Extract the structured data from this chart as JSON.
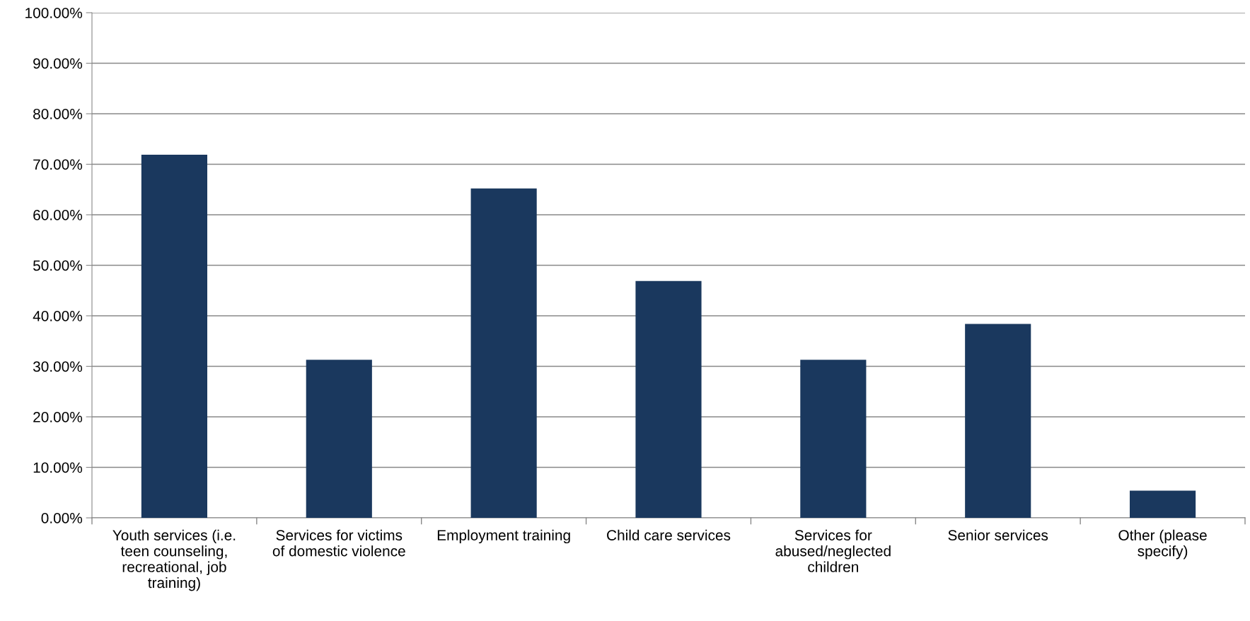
{
  "chart_data": {
    "type": "bar",
    "categories": [
      "Youth services (i.e. teen counseling, recreational, job training)",
      "Services for victims of domestic violence",
      "Employment training",
      "Child care services",
      "Services for abused/neglected children",
      "Senior services",
      "Other (please specify)"
    ],
    "values": [
      71.9,
      31.3,
      65.2,
      46.9,
      31.3,
      38.4,
      5.4
    ],
    "color": "#1a385e",
    "ylim": [
      0,
      100
    ],
    "yticks": [
      {
        "value": 0,
        "label": "0.00%"
      },
      {
        "value": 10,
        "label": "10.00%"
      },
      {
        "value": 20,
        "label": "20.00%"
      },
      {
        "value": 30,
        "label": "30.00%"
      },
      {
        "value": 40,
        "label": "40.00%"
      },
      {
        "value": 50,
        "label": "50.00%"
      },
      {
        "value": 60,
        "label": "60.00%"
      },
      {
        "value": 70,
        "label": "70.00%"
      },
      {
        "value": 80,
        "label": "80.00%"
      },
      {
        "value": 90,
        "label": "90.00%"
      },
      {
        "value": 100,
        "label": "100.00%"
      }
    ],
    "grid": "y",
    "legend": false
  }
}
